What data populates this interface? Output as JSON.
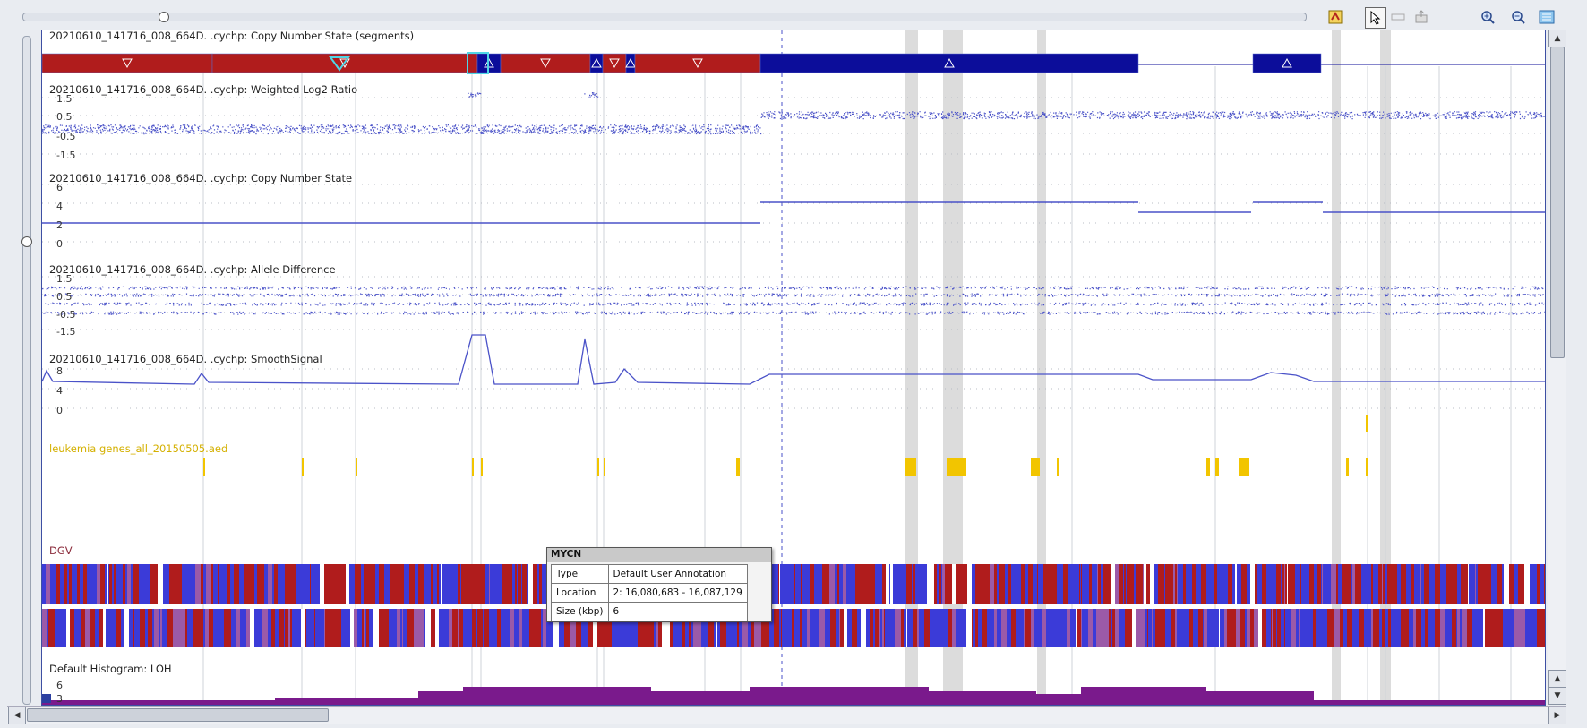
{
  "toolbar": {
    "icons": [
      "chart-settings-icon",
      "pointer-select-icon",
      "annotation-icon",
      "export-icon",
      "zoom-in-icon",
      "zoom-out-icon",
      "zoom-fit-icon"
    ]
  },
  "tracks": {
    "segments_label": "20210610_141716_008_664D.         .cychp: Copy Number State (segments)",
    "log2_label": "20210610_141716_008_664D.         .cychp: Weighted Log2 Ratio",
    "log2_ticks": [
      "1.5",
      "0.5",
      "-0.5",
      "-1.5"
    ],
    "cn_label": "20210610_141716_008_664D.         .cychp: Copy Number State",
    "cn_ticks": [
      "6",
      "4",
      "2",
      "0"
    ],
    "allele_label": "20210610_141716_008_664D.         .cychp: Allele Difference",
    "allele_ticks": [
      "1.5",
      "0.5",
      "-0.5",
      "-1.5"
    ],
    "smooth_label": "20210610_141716_008_664D.         .cychp: SmoothSignal",
    "smooth_ticks": [
      "8",
      "4",
      "0"
    ],
    "genes_label": "leukemia genes_all_20150505.aed",
    "dgv_label": "DGV",
    "hist_label": "Default Histogram: LOH",
    "hist_ticks": [
      "6",
      "3"
    ]
  },
  "tooltip": {
    "title": "MYCN",
    "rows": [
      {
        "key": "Type",
        "value": "Default User Annotation"
      },
      {
        "key": "Location",
        "value": "2: 16,080,683 - 16,087,129"
      },
      {
        "key": "Size (kbp)",
        "value": "6"
      }
    ]
  },
  "colors": {
    "loss": "#b01c1c",
    "gain": "#0c0d9a",
    "signal": "#4a52c8",
    "gene": "#f2c500",
    "loh": "#7a1a8c",
    "highlight": "#dcdcdc"
  },
  "segments": [
    {
      "state": "loss",
      "marker": "down"
    },
    {
      "state": "loss",
      "marker": "down"
    },
    {
      "state": "gain",
      "marker": "up"
    },
    {
      "state": "loss",
      "marker": "down"
    },
    {
      "state": "gain",
      "marker": "up"
    },
    {
      "state": "loss",
      "marker": "down"
    },
    {
      "state": "gain",
      "marker": "up"
    },
    {
      "state": "loss",
      "marker": "down"
    },
    {
      "state": "gain",
      "marker": "up"
    },
    {
      "state": "gain",
      "marker": "up"
    }
  ]
}
